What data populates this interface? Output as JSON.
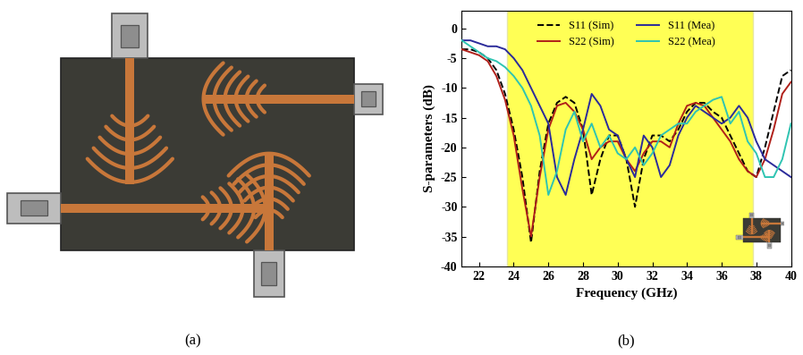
{
  "chart_data": [
    {
      "type": "diagram",
      "caption": "(a)"
    },
    {
      "type": "line",
      "caption": "(b)",
      "xlabel": "Frequency (GHz)",
      "ylabel": "S-parameters (dB)",
      "x": [
        21,
        21.5,
        22,
        22.5,
        23,
        23.5,
        24,
        24.5,
        25,
        25.5,
        26,
        26.5,
        27,
        27.5,
        28,
        28.5,
        29,
        29.5,
        30,
        30.5,
        31,
        31.5,
        32,
        32.5,
        33,
        33.5,
        34,
        34.5,
        35,
        35.5,
        36,
        36.5,
        37,
        37.5,
        38,
        38.5,
        39,
        39.5,
        40
      ],
      "series": [
        {
          "name": "S11 (Sim)",
          "color": "#000000",
          "line_style": "dashed",
          "values": [
            -3.5,
            -3.5,
            -4,
            -5,
            -7,
            -11,
            -17,
            -25,
            -36,
            -24,
            -16,
            -12.5,
            -11.5,
            -12.5,
            -17,
            -28,
            -22,
            -18,
            -18,
            -22,
            -30,
            -22,
            -18,
            -18,
            -19,
            -17,
            -14,
            -12.5,
            -12.5,
            -14,
            -15,
            -18,
            -21,
            -24,
            -25,
            -20,
            -14,
            -8,
            -7
          ]
        },
        {
          "name": "S22 (Sim)",
          "color": "#b0201a",
          "line_style": "solid",
          "values": [
            -3.5,
            -4,
            -4.5,
            -5.5,
            -8,
            -12,
            -18,
            -27,
            -35,
            -25,
            -17,
            -13,
            -12.5,
            -14,
            -17,
            -22,
            -20,
            -19,
            -19,
            -22,
            -24,
            -21,
            -19,
            -19,
            -20,
            -16,
            -13,
            -12.5,
            -13,
            -15,
            -17,
            -19,
            -22,
            -24,
            -25,
            -22,
            -17,
            -11,
            -9
          ]
        },
        {
          "name": "S11 (Mea)",
          "color": "#2b2b9a",
          "line_style": "solid",
          "values": [
            -2,
            -2,
            -2.5,
            -3,
            -3,
            -3.5,
            -5,
            -7,
            -10,
            -13,
            -16,
            -25,
            -28,
            -22,
            -17,
            -11,
            -13,
            -17,
            -18,
            -22,
            -25,
            -18,
            -20,
            -25,
            -23,
            -18,
            -15,
            -13,
            -14,
            -15,
            -16,
            -15,
            -13,
            -15,
            -19,
            -22,
            -23,
            -24,
            -25
          ]
        },
        {
          "name": "S22 (Mea)",
          "color": "#2fc4b2",
          "line_style": "solid",
          "values": [
            -2,
            -3,
            -4,
            -5,
            -5.5,
            -6.5,
            -8,
            -10,
            -13,
            -18,
            -28,
            -24,
            -17,
            -14,
            -19,
            -16,
            -20,
            -18,
            -21,
            -22,
            -20,
            -23,
            -21,
            -18,
            -17,
            -16,
            -16,
            -14,
            -13,
            -12,
            -11.5,
            -16,
            -14,
            -19,
            -21,
            -25,
            -25,
            -22,
            -16
          ]
        }
      ],
      "xlim": [
        21,
        40
      ],
      "ylim": [
        -40,
        3
      ],
      "xticks": [
        22,
        24,
        26,
        28,
        30,
        32,
        34,
        36,
        38,
        40
      ],
      "yticks": [
        -40,
        -35,
        -30,
        -25,
        -20,
        -15,
        -10,
        -5,
        0
      ],
      "legend": "upper center",
      "shaded_range": [
        23.6,
        37.8
      ]
    }
  ]
}
